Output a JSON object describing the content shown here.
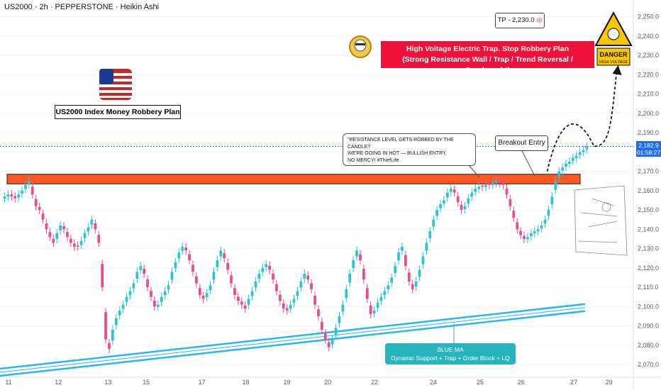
{
  "header": {
    "title": "US2000 · 2h · PEPPERSTONE · Heikin Ashi"
  },
  "annotations": {
    "plan_title": "US2000 Index Money Robbery Plan",
    "trap_line1": "High Voltage Electric Trap. Stop Robbery Plan",
    "trap_line2": "(Strong Resistance Wall / Trap / Trend Reversal / Overbought)",
    "tp_label": "TP - 2,230.0",
    "tp_icon": "target-icon",
    "breakout_label": "Breakout Entry",
    "speech_line1": "\"RESISTANCE LEVEL GETS ROBBED BY THE CANDLE?",
    "speech_line2": "WE'RE GOING IN HOT — BULLISH ENTRY,",
    "speech_line3": "NO MERCY! #ThiefLife",
    "blue_ma_title": "BLUE MA",
    "blue_ma_sub": "Dynamic Support + Trap + Order Block + LQ Zone",
    "danger_title": "DANGER",
    "danger_sub": "HIGH VOLTAGE",
    "flag_icon": "us-flag-icon",
    "robber_icon": "robber-icon"
  },
  "price_tag": {
    "price": "2,182.9",
    "countdown": "01:58:27"
  },
  "colors": {
    "up": "#26c6da",
    "down": "#f0488d",
    "resistance": "#ff5722",
    "ma": "#29b6f6",
    "banner": "#f0113a",
    "price_line": "#1e6ef5"
  },
  "chart_data": {
    "type": "candlestick",
    "x_ticks": [
      "11",
      "12",
      "13",
      "15",
      "17",
      "18",
      "19",
      "20",
      "22",
      "24",
      "25",
      "26",
      "27",
      "29"
    ],
    "y_ticks": [
      "2,250.0",
      "2,240.0",
      "2,230.0",
      "2,220.0",
      "2,210.0",
      "2,200.0",
      "2,190.0",
      "2,180.0",
      "2,170.0",
      "2,160.0",
      "2,150.0",
      "2,140.0",
      "2,130.0",
      "2,120.0",
      "2,110.0",
      "2,100.0",
      "2,090.0",
      "2,080.0",
      "2,070.0"
    ],
    "ylim": [
      2066,
      2255
    ],
    "resistance_zone": [
      2163.5,
      2168.5
    ],
    "take_profit": 2230.0,
    "current_price": 2182.9,
    "closes": [
      2157,
      2158,
      2157,
      2156,
      2158,
      2160,
      2163,
      2165,
      2158,
      2152,
      2150,
      2145,
      2140,
      2136,
      2133,
      2138,
      2142,
      2140,
      2136,
      2133,
      2131,
      2131,
      2134,
      2138,
      2141,
      2145,
      2140,
      2133,
      2110,
      2083,
      2078,
      2088,
      2094,
      2098,
      2101,
      2105,
      2108,
      2112,
      2118,
      2121,
      2117,
      2110,
      2105,
      2100,
      2101,
      2105,
      2108,
      2111,
      2118,
      2123,
      2128,
      2131,
      2129,
      2124,
      2118,
      2112,
      2106,
      2104,
      2107,
      2111,
      2118,
      2124,
      2129,
      2125,
      2119,
      2112,
      2106,
      2103,
      2101,
      2099,
      2104,
      2108,
      2113,
      2117,
      2120,
      2122,
      2119,
      2114,
      2108,
      2103,
      2099,
      2098,
      2101,
      2104,
      2108,
      2113,
      2117,
      2114,
      2109,
      2101,
      2095,
      2088,
      2083,
      2079,
      2083,
      2089,
      2095,
      2101,
      2109,
      2117,
      2124,
      2129,
      2124,
      2114,
      2104,
      2096,
      2098,
      2102,
      2105,
      2108,
      2111,
      2115,
      2121,
      2128,
      2131,
      2121,
      2113,
      2109,
      2113,
      2119,
      2126,
      2133,
      2139,
      2145,
      2150,
      2153,
      2155,
      2159,
      2161,
      2159,
      2154,
      2150,
      2152,
      2156,
      2159,
      2161,
      2162,
      2162,
      2163,
      2163,
      2164,
      2165,
      2164,
      2163,
      2158,
      2152,
      2146,
      2140,
      2137,
      2135,
      2136,
      2138,
      2139,
      2140,
      2142,
      2145,
      2150,
      2157,
      2165,
      2170,
      2172,
      2174,
      2175,
      2177,
      2178,
      2180,
      2181,
      2182.9
    ],
    "ma_line": [
      [
        0,
        2066
      ],
      [
        1,
        2099.5
      ]
    ],
    "projection": [
      2182.9,
      2190,
      2230
    ]
  }
}
